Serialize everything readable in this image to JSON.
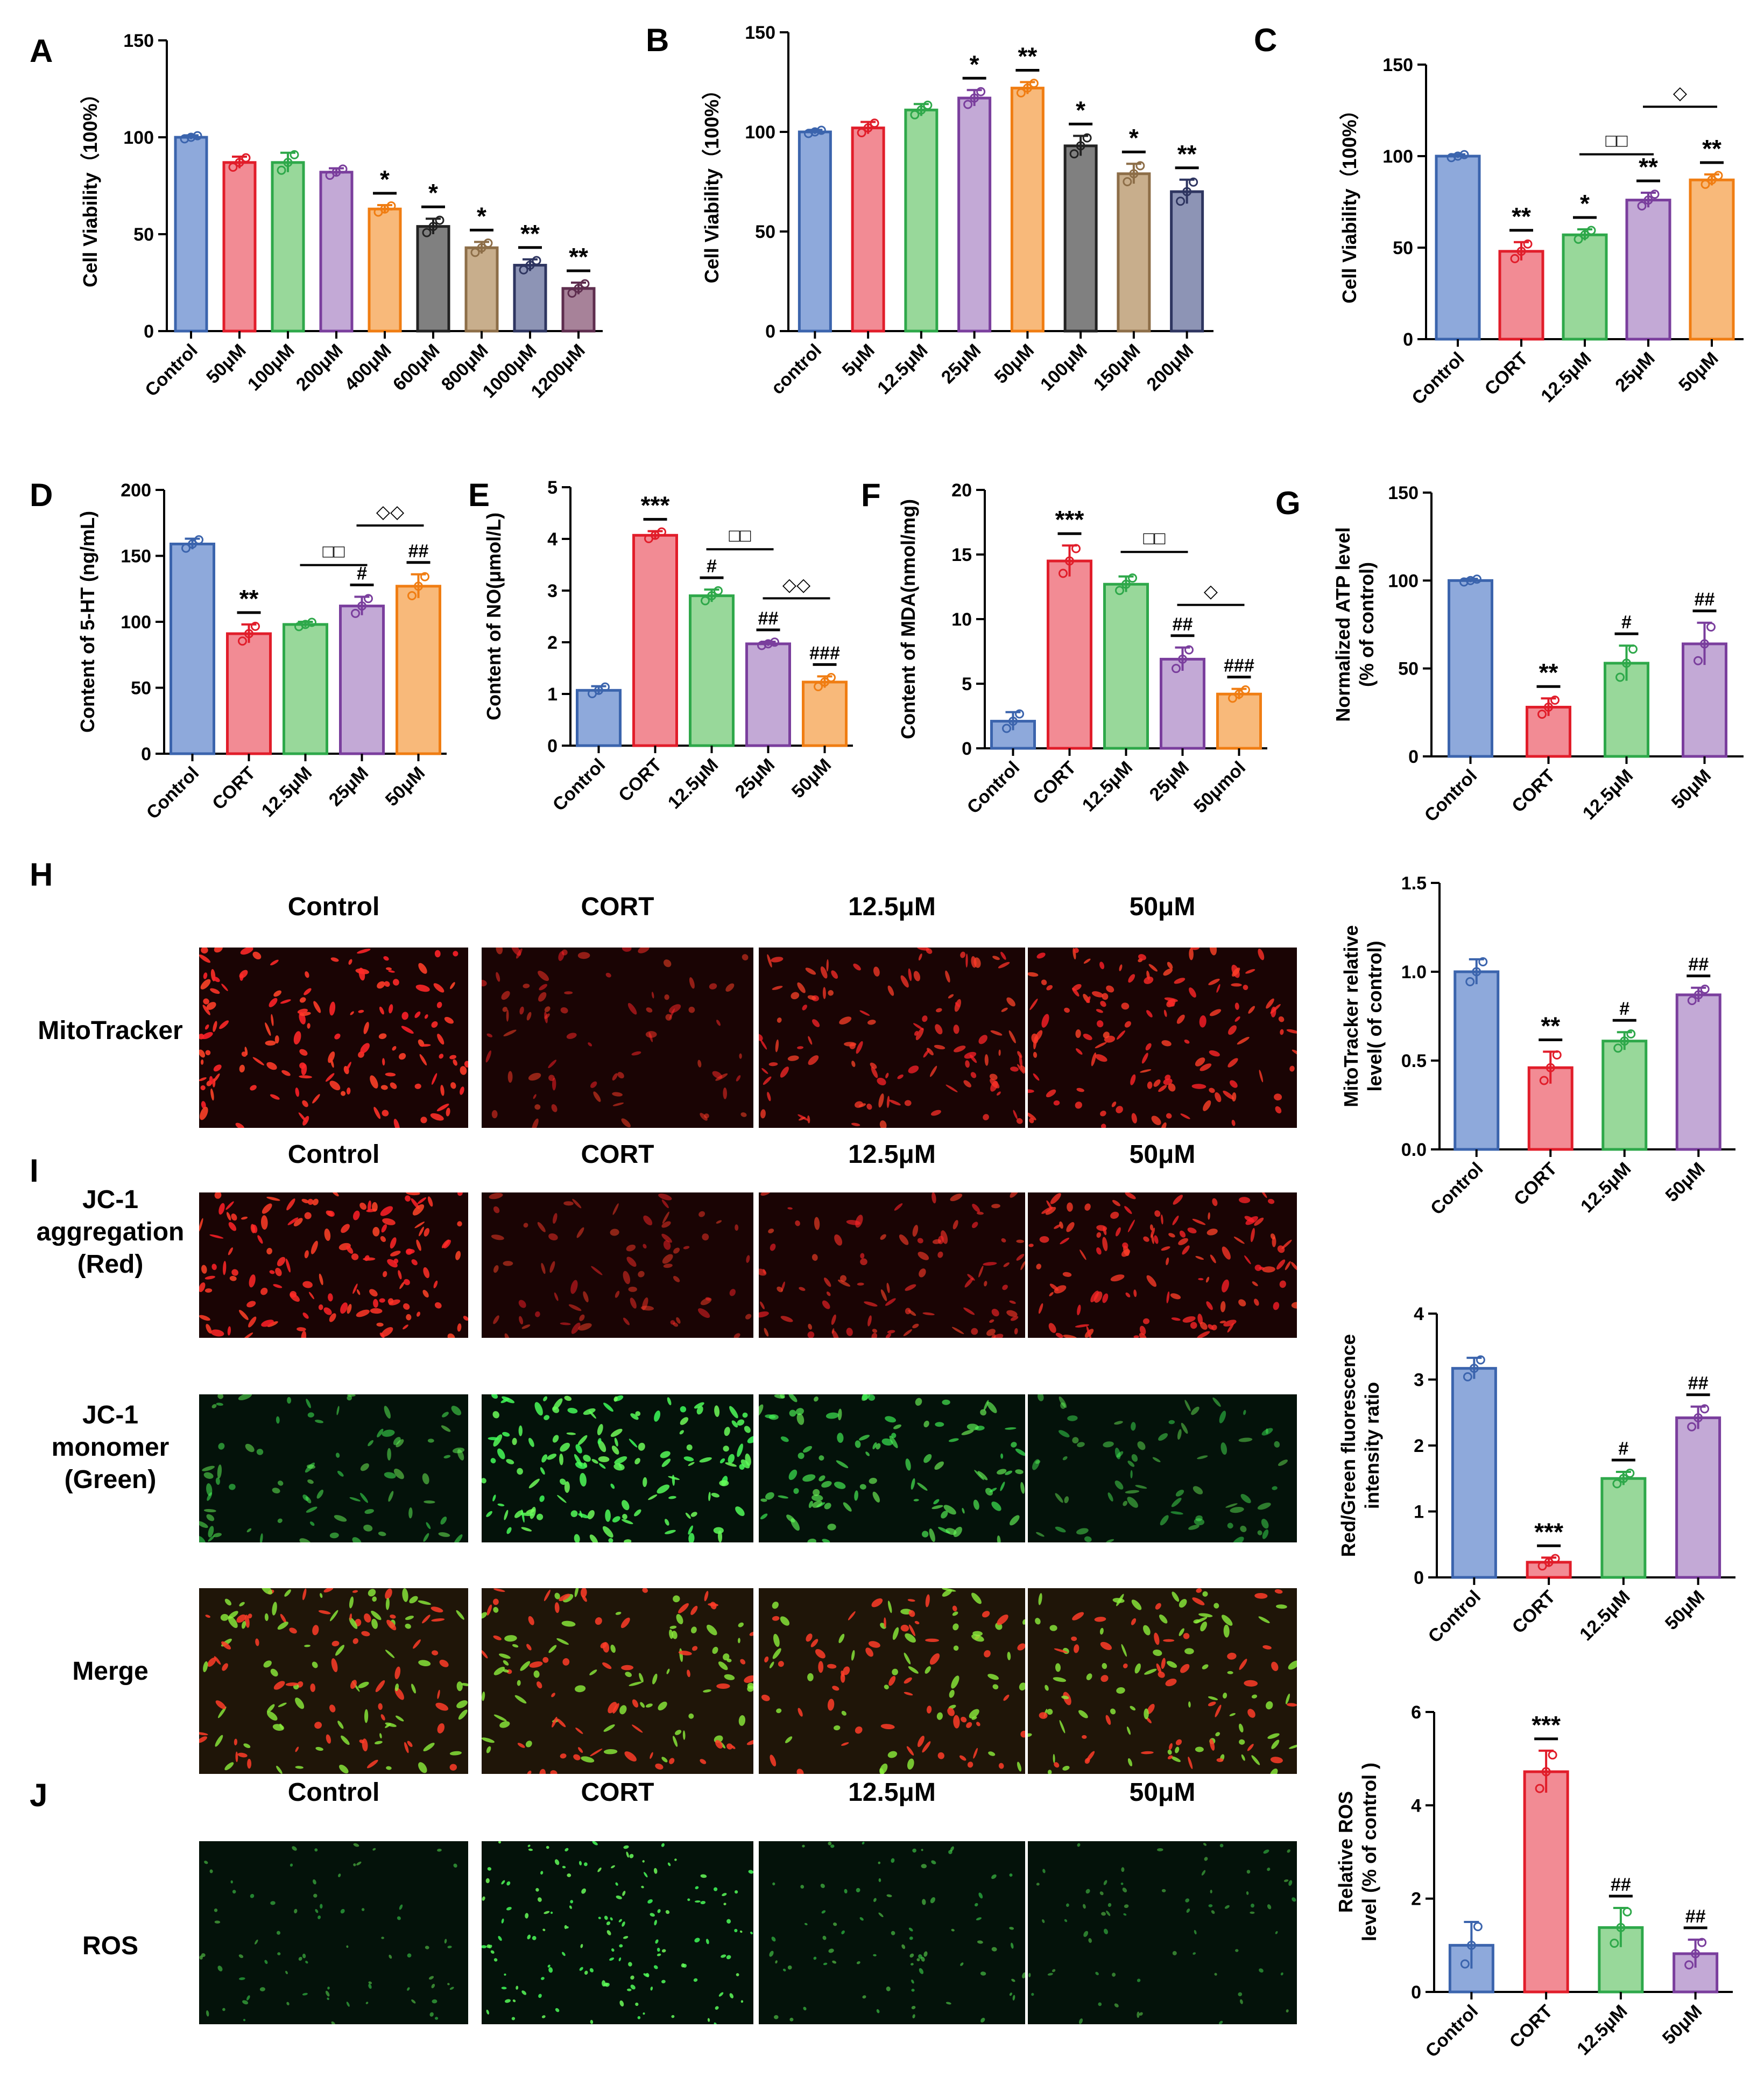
{
  "colors": {
    "blue": "#8ea9db",
    "blue_edge": "#3b64ad",
    "red": "#f28b94",
    "red_edge": "#e11d2a",
    "green": "#98d89a",
    "green_edge": "#2ea84a",
    "purple": "#c3a9d6",
    "purple_edge": "#7a3e9d",
    "orange": "#f8b97a",
    "orange_edge": "#f07d12",
    "dark": "#808080",
    "dark_edge": "#222222",
    "tan": "#c8ae8c",
    "tan_edge": "#8d6e48",
    "slate": "#8d94b5",
    "slate_edge": "#2e3560",
    "mauve": "#a78299",
    "mauve_edge": "#5e2d4e"
  },
  "chart_data": [
    {
      "id": "A",
      "type": "bar",
      "letter": "A",
      "ylabel": "Cell Viability（100%）",
      "ylim": [
        0,
        150
      ],
      "yticks": [
        0,
        50,
        100,
        150
      ],
      "categories": [
        "Control",
        "50μM",
        "100μM",
        "200μM",
        "400μM",
        "600μM",
        "800μM",
        "1000μM",
        "1200μM"
      ],
      "values": [
        100,
        87,
        87,
        82,
        63,
        54,
        43,
        34,
        22
      ],
      "errors": [
        1,
        3,
        5,
        2,
        2,
        4,
        3,
        3,
        3
      ],
      "colors": [
        "blue",
        "red",
        "green",
        "purple",
        "orange",
        "dark",
        "tan",
        "slate",
        "mauve"
      ],
      "annotations": [
        "",
        "",
        "",
        "",
        "*",
        "*",
        "*",
        "**",
        "**"
      ]
    },
    {
      "id": "B",
      "type": "bar",
      "letter": "B",
      "ylabel": "Cell Viability（100%）",
      "ylim": [
        0,
        150
      ],
      "yticks": [
        0,
        50,
        100,
        150
      ],
      "categories": [
        "control",
        "5μM",
        "12.5μM",
        "25μM",
        "50μM",
        "100μM",
        "150μM",
        "200μM"
      ],
      "values": [
        100,
        102,
        111,
        117,
        122,
        93,
        79,
        70
      ],
      "errors": [
        1,
        3,
        3,
        4,
        3,
        5,
        5,
        6
      ],
      "colors": [
        "blue",
        "red",
        "green",
        "purple",
        "orange",
        "dark",
        "tan",
        "slate"
      ],
      "annotations": [
        "",
        "",
        "",
        "*",
        "**",
        "*",
        "*",
        "**"
      ]
    },
    {
      "id": "C",
      "type": "bar",
      "letter": "C",
      "ylabel": "Cell Viability（100%）",
      "ylim": [
        0,
        150
      ],
      "yticks": [
        0,
        50,
        100,
        150
      ],
      "categories": [
        "Control",
        "CORT",
        "12.5μM",
        "25μM",
        "50μM"
      ],
      "values": [
        100,
        48,
        57,
        76,
        87
      ],
      "errors": [
        1,
        5,
        3,
        4,
        3
      ],
      "colors": [
        "blue",
        "red",
        "green",
        "purple",
        "orange"
      ],
      "annotations": [
        "",
        "**",
        "*",
        "**",
        "**"
      ],
      "brackets": [
        {
          "from": 2,
          "to": 3,
          "value": 101,
          "label": "□□"
        },
        {
          "from": 3,
          "to": 4,
          "value": 127,
          "label": "◇"
        }
      ]
    },
    {
      "id": "D",
      "type": "bar",
      "letter": "D",
      "ylabel": "Content of 5-HT (ng/mL)",
      "ylim": [
        0,
        200
      ],
      "yticks": [
        0,
        50,
        100,
        150,
        200
      ],
      "categories": [
        "Control",
        "CORT",
        "12.5μM",
        "25μM",
        "50μM"
      ],
      "values": [
        159,
        91,
        98,
        112,
        127
      ],
      "errors": [
        4,
        7,
        2,
        7,
        9
      ],
      "colors": [
        "blue",
        "red",
        "green",
        "purple",
        "orange"
      ],
      "annotations": [
        "",
        "**",
        "",
        "#",
        "##"
      ],
      "brackets": [
        {
          "from": 2,
          "to": 3,
          "value": 143,
          "label": "□□"
        },
        {
          "from": 3,
          "to": 4,
          "value": 173,
          "label": "◇◇"
        }
      ]
    },
    {
      "id": "E",
      "type": "bar",
      "letter": "E",
      "ylabel": "Content of NO(μmol/L)",
      "ylim": [
        0,
        5
      ],
      "yticks": [
        0,
        1,
        2,
        3,
        4,
        5
      ],
      "categories": [
        "Control",
        "CORT",
        "12.5μM",
        "25μM",
        "50μM"
      ],
      "values": [
        1.07,
        4.07,
        2.9,
        1.97,
        1.23
      ],
      "errors": [
        0.08,
        0.08,
        0.12,
        0.04,
        0.11
      ],
      "colors": [
        "blue",
        "red",
        "green",
        "purple",
        "orange"
      ],
      "annotations": [
        "",
        "***",
        "#",
        "##",
        "###"
      ],
      "brackets": [
        {
          "from": 2,
          "to": 3,
          "value": 3.8,
          "label": "□□"
        },
        {
          "from": 3,
          "to": 4,
          "value": 2.85,
          "label": "◇◇"
        }
      ]
    },
    {
      "id": "F",
      "type": "bar",
      "letter": "F",
      "ylabel": "Content of MDA(nmol/mg)",
      "ylim": [
        0,
        20
      ],
      "yticks": [
        0,
        5,
        10,
        15,
        20
      ],
      "categories": [
        "Control",
        "CORT",
        "12.5μM",
        "25μM",
        "50μmol"
      ],
      "values": [
        2.1,
        14.5,
        12.7,
        6.9,
        4.2
      ],
      "errors": [
        0.7,
        1.2,
        0.6,
        0.9,
        0.4
      ],
      "colors": [
        "blue",
        "red",
        "green",
        "purple",
        "orange"
      ],
      "annotations": [
        "",
        "***",
        "",
        "##",
        "###"
      ],
      "brackets": [
        {
          "from": 2,
          "to": 3,
          "value": 15.2,
          "label": "□□"
        },
        {
          "from": 3,
          "to": 4,
          "value": 11.1,
          "label": "◇"
        }
      ]
    },
    {
      "id": "G",
      "type": "bar",
      "letter": "G",
      "ylabel": [
        "Normalized ATP level",
        "(% of control)"
      ],
      "ylim": [
        0,
        150
      ],
      "yticks": [
        0,
        50,
        100,
        150
      ],
      "categories": [
        "Control",
        "CORT",
        "12.5μM",
        "50μM"
      ],
      "values": [
        100,
        28,
        53,
        64
      ],
      "errors": [
        1,
        5,
        10,
        12
      ],
      "colors": [
        "blue",
        "red",
        "green",
        "purple"
      ],
      "annotations": [
        "",
        "**",
        "#",
        "##"
      ]
    },
    {
      "id": "H",
      "type": "bar",
      "letter": "",
      "ylabel": [
        "MitoTracker relative",
        "level( of control)"
      ],
      "ylim": [
        0,
        1.5
      ],
      "yticks": [
        "0.0",
        "0.5",
        "1.0",
        "1.5"
      ],
      "categories": [
        "Control",
        "CORT",
        "12.5μM",
        "50μM"
      ],
      "values": [
        1.0,
        0.46,
        0.61,
        0.87
      ],
      "errors": [
        0.07,
        0.09,
        0.05,
        0.04
      ],
      "colors": [
        "blue",
        "red",
        "green",
        "purple"
      ],
      "annotations": [
        "",
        "**",
        "#",
        "##"
      ]
    },
    {
      "id": "I",
      "type": "bar",
      "letter": "",
      "ylabel": [
        "Red/Green fluorescence",
        "intensity ratio"
      ],
      "ylim": [
        0,
        4
      ],
      "yticks": [
        0,
        1,
        2,
        3,
        4
      ],
      "categories": [
        "Control",
        "CORT",
        "12.5μM",
        "50μM"
      ],
      "values": [
        3.17,
        0.23,
        1.5,
        2.42
      ],
      "errors": [
        0.16,
        0.07,
        0.1,
        0.17
      ],
      "colors": [
        "blue",
        "red",
        "green",
        "purple"
      ],
      "annotations": [
        "",
        "***",
        "#",
        "##"
      ]
    },
    {
      "id": "J",
      "type": "bar",
      "letter": "",
      "ylabel": [
        "Relative ROS",
        "level (% of control )"
      ],
      "ylim": [
        0,
        6
      ],
      "yticks": [
        0,
        2,
        4,
        6
      ],
      "categories": [
        "Control",
        "CORT",
        "12.5μM",
        "50μM"
      ],
      "values": [
        1.0,
        4.72,
        1.38,
        0.82
      ],
      "errors": [
        0.5,
        0.45,
        0.42,
        0.3
      ],
      "colors": [
        "blue",
        "red",
        "green",
        "purple"
      ],
      "annotations": [
        "",
        "***",
        "##",
        "##"
      ]
    }
  ],
  "micrographs": {
    "H": {
      "letter": "H",
      "columns": [
        "Control",
        "CORT",
        "12.5μM",
        "50μM"
      ],
      "rows": [
        {
          "label": [
            "MitoTracker"
          ],
          "tint": "red",
          "intensities": [
            0.9,
            0.3,
            0.65,
            0.75
          ]
        }
      ]
    },
    "I": {
      "letter": "I",
      "columns": [
        "Control",
        "CORT",
        "12.5μM",
        "50μM"
      ],
      "rows": [
        {
          "label": [
            "JC-1",
            "aggregation",
            "(Red)"
          ],
          "tint": "red",
          "intensities": [
            0.85,
            0.25,
            0.45,
            0.7
          ]
        },
        {
          "label": [
            "JC-1",
            "monomer",
            "(Green)"
          ],
          "tint": "green",
          "intensities": [
            0.35,
            0.9,
            0.55,
            0.25
          ]
        },
        {
          "label": [
            "Merge"
          ],
          "tint": "merge",
          "intensities": [
            0.85,
            0.8,
            0.6,
            0.75
          ]
        }
      ]
    },
    "J": {
      "letter": "J",
      "columns": [
        "Control",
        "CORT",
        "12.5μM",
        "50μM"
      ],
      "rows": [
        {
          "label": [
            "ROS"
          ],
          "tint": "green",
          "intensities": [
            0.3,
            0.9,
            0.35,
            0.25
          ]
        }
      ]
    }
  }
}
